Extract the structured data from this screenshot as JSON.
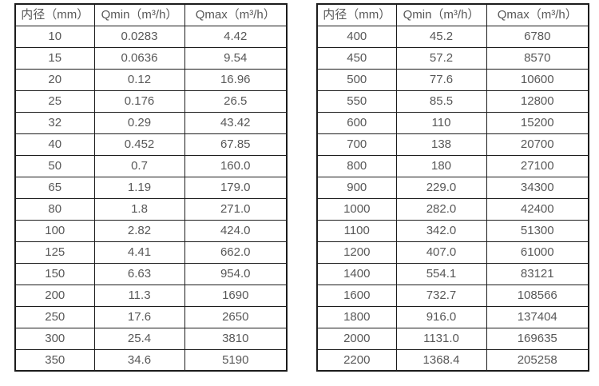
{
  "colors": {
    "background": "#ffffff",
    "border": "#1c1c1c",
    "text": "#585858"
  },
  "tables": [
    {
      "name": "flow-table-dn10-350",
      "headers": [
        "内径（mm）",
        "Qmin（m³/h）",
        "Qmax（m³/h）"
      ],
      "rows": [
        [
          "10",
          "0.0283",
          "4.42"
        ],
        [
          "15",
          "0.0636",
          "9.54"
        ],
        [
          "20",
          "0.12",
          "16.96"
        ],
        [
          "25",
          "0.176",
          "26.5"
        ],
        [
          "32",
          "0.29",
          "43.42"
        ],
        [
          "40",
          "0.452",
          "67.85"
        ],
        [
          "50",
          "0.7",
          "160.0"
        ],
        [
          "65",
          "1.19",
          "179.0"
        ],
        [
          "80",
          "1.8",
          "271.0"
        ],
        [
          "100",
          "2.82",
          "424.0"
        ],
        [
          "125",
          "4.41",
          "662.0"
        ],
        [
          "150",
          "6.63",
          "954.0"
        ],
        [
          "200",
          "11.3",
          "1690"
        ],
        [
          "250",
          "17.6",
          "2650"
        ],
        [
          "300",
          "25.4",
          "3810"
        ],
        [
          "350",
          "34.6",
          "5190"
        ]
      ]
    },
    {
      "name": "flow-table-dn400-2200",
      "headers": [
        "内径（mm）",
        "Qmin（m³/h）",
        "Qmax（m³/h）"
      ],
      "rows": [
        [
          "400",
          "45.2",
          "6780"
        ],
        [
          "450",
          "57.2",
          "8570"
        ],
        [
          "500",
          "77.6",
          "10600"
        ],
        [
          "550",
          "85.5",
          "12800"
        ],
        [
          "600",
          "110",
          "15200"
        ],
        [
          "700",
          "138",
          "20700"
        ],
        [
          "800",
          "180",
          "27100"
        ],
        [
          "900",
          "229.0",
          "34300"
        ],
        [
          "1000",
          "282.0",
          "42400"
        ],
        [
          "1100",
          "342.0",
          "51300"
        ],
        [
          "1200",
          "407.0",
          "61000"
        ],
        [
          "1400",
          "554.1",
          "83121"
        ],
        [
          "1600",
          "732.7",
          "108566"
        ],
        [
          "1800",
          "916.0",
          "137404"
        ],
        [
          "2000",
          "1131.0",
          "169635"
        ],
        [
          "2200",
          "1368.4",
          "205258"
        ]
      ]
    }
  ]
}
